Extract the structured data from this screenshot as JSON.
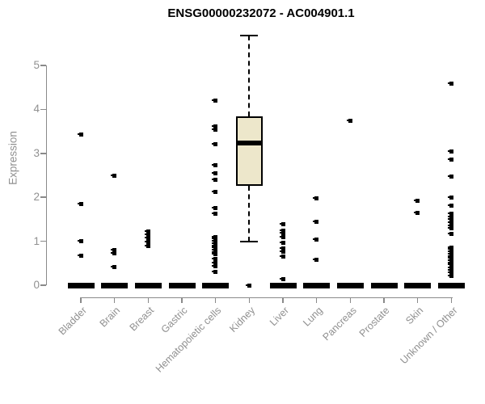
{
  "chart_data": {
    "type": "boxplot",
    "title": "ENSG00000232072 - AC004901.1",
    "ylabel": "Expression",
    "xlabel": "",
    "ylim": [
      0,
      5.8
    ],
    "yticks": [
      0,
      1,
      2,
      3,
      4,
      5
    ],
    "grid": false,
    "legend": "none",
    "categories": [
      "Bladder",
      "Brain",
      "Breast",
      "Gastric",
      "Hematopoietic cells",
      "Kidney",
      "Liver",
      "Lung",
      "Pancreas",
      "Prostate",
      "Skin",
      "Unknown / Other"
    ],
    "boxes": [
      {
        "category": "Bladder",
        "q1": 0,
        "median": 0,
        "q3": 0,
        "whisker_low": 0,
        "whisker_high": 0,
        "outliers": [
          3.43,
          1.84,
          1.0,
          0.68
        ]
      },
      {
        "category": "Brain",
        "q1": 0,
        "median": 0,
        "q3": 0,
        "whisker_low": 0,
        "whisker_high": 0,
        "outliers": [
          2.5,
          0.8,
          0.72,
          0.42
        ]
      },
      {
        "category": "Breast",
        "q1": 0,
        "median": 0,
        "q3": 0,
        "whisker_low": 0,
        "whisker_high": 0,
        "outliers": [
          1.23,
          1.15,
          1.07,
          0.99,
          0.9
        ]
      },
      {
        "category": "Gastric",
        "q1": 0,
        "median": 0,
        "q3": 0,
        "whisker_low": 0,
        "whisker_high": 0,
        "outliers": []
      },
      {
        "category": "Hematopoietic cells",
        "q1": 0,
        "median": 0,
        "q3": 0,
        "whisker_low": 0,
        "whisker_high": 0,
        "outliers": [
          4.2,
          3.62,
          3.53,
          3.2,
          2.73,
          2.55,
          2.4,
          2.12,
          1.76,
          1.63,
          1.1,
          1.05,
          1.0,
          0.95,
          0.9,
          0.85,
          0.8,
          0.75,
          0.7,
          0.59,
          0.5,
          0.44,
          0.31
        ]
      },
      {
        "category": "Kidney",
        "q1": 2.27,
        "median": 3.24,
        "q3": 3.84,
        "whisker_low": 1.0,
        "whisker_high": 5.68,
        "outliers": [
          0
        ]
      },
      {
        "category": "Liver",
        "q1": 0,
        "median": 0,
        "q3": 0,
        "whisker_low": 0,
        "whisker_high": 0,
        "outliers": [
          1.39,
          1.24,
          1.19,
          1.09,
          0.96,
          0.83,
          0.77,
          0.65,
          0.13
        ]
      },
      {
        "category": "Lung",
        "q1": 0,
        "median": 0,
        "q3": 0,
        "whisker_low": 0,
        "whisker_high": 0,
        "outliers": [
          1.97,
          1.45,
          1.04,
          0.58
        ]
      },
      {
        "category": "Pancreas",
        "q1": 0,
        "median": 0,
        "q3": 0,
        "whisker_low": 0,
        "whisker_high": 0,
        "outliers": [
          3.75
        ]
      },
      {
        "category": "Prostate",
        "q1": 0,
        "median": 0,
        "q3": 0,
        "whisker_low": 0,
        "whisker_high": 0,
        "outliers": []
      },
      {
        "category": "Skin",
        "q1": 0,
        "median": 0,
        "q3": 0,
        "whisker_low": 0,
        "whisker_high": 0,
        "outliers": [
          1.93,
          1.64
        ]
      },
      {
        "category": "Unknown / Other",
        "q1": 0,
        "median": 0,
        "q3": 0,
        "whisker_low": 0,
        "whisker_high": 0,
        "outliers": [
          4.58,
          3.04,
          2.85,
          2.48,
          2.0,
          1.81,
          1.63,
          1.56,
          1.49,
          1.42,
          1.35,
          1.29,
          1.17,
          0.86,
          0.81,
          0.76,
          0.71,
          0.66,
          0.61,
          0.56,
          0.51,
          0.46,
          0.4,
          0.34,
          0.28,
          0.22
        ]
      }
    ]
  },
  "colors": {
    "box_fill": "#EDE7CB",
    "box_stroke": "#000000",
    "axis": "#8a8a8a",
    "tick_label": "#909090",
    "title": "#000000",
    "background": "#ffffff"
  }
}
